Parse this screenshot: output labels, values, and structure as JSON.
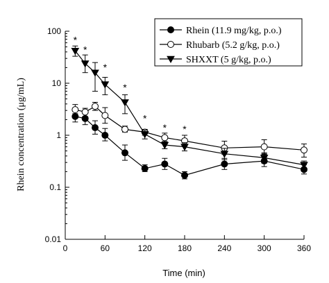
{
  "chart_data": {
    "type": "line",
    "title": "",
    "xlabel": "Time (min)",
    "ylabel": "Rhein concentration (μg/mL)",
    "x_scale": "linear",
    "y_scale": "log",
    "xlim": [
      0,
      360
    ],
    "ylim": [
      0.01,
      100
    ],
    "x_ticks": [
      0,
      60,
      120,
      180,
      240,
      300,
      360
    ],
    "x_tick_labels": [
      "0",
      "60",
      "120",
      "180",
      "240",
      "300",
      "360"
    ],
    "y_ticks": [
      0.01,
      0.1,
      1,
      10,
      100
    ],
    "y_tick_labels": [
      "0.01",
      "0.1",
      "1",
      "10",
      "100"
    ],
    "grid": false,
    "legend_position": "top-right",
    "series": [
      {
        "name": "Rhein (11.9 mg/kg, p.o.)",
        "marker": "filled-circle",
        "x": [
          15,
          30,
          45,
          60,
          90,
          120,
          150,
          180,
          240,
          300,
          360
        ],
        "y": [
          2.3,
          2.1,
          1.4,
          1.0,
          0.46,
          0.23,
          0.28,
          0.17,
          0.28,
          0.32,
          0.22
        ],
        "err_up": [
          2.9,
          2.7,
          1.9,
          1.35,
          0.65,
          0.27,
          0.36,
          0.2,
          0.36,
          0.43,
          0.27
        ],
        "err_down": [
          1.8,
          1.6,
          1.05,
          0.78,
          0.33,
          0.2,
          0.22,
          0.145,
          0.22,
          0.25,
          0.18
        ]
      },
      {
        "name": "Rhubarb (5.2 g/kg, p.o.)",
        "marker": "open-circle",
        "x": [
          15,
          30,
          45,
          60,
          90,
          120,
          150,
          180,
          240,
          300,
          360
        ],
        "y": [
          3.1,
          2.8,
          3.6,
          2.4,
          1.3,
          1.15,
          0.9,
          0.78,
          0.57,
          0.6,
          0.52
        ],
        "err_up": [
          3.9,
          3.3,
          4.3,
          3.4,
          1.5,
          1.3,
          1.1,
          1.0,
          0.77,
          0.82,
          0.68
        ],
        "err_down": [
          2.6,
          2.3,
          3.0,
          1.7,
          1.15,
          1.0,
          0.75,
          0.63,
          0.43,
          0.44,
          0.38
        ]
      },
      {
        "name": "SHXXT (5 g/kg, p.o.)",
        "marker": "filled-triangle-down",
        "x": [
          15,
          30,
          45,
          60,
          90,
          120,
          150,
          180,
          240,
          300,
          360
        ],
        "y": [
          42,
          24,
          16,
          9.5,
          4.3,
          1.05,
          0.65,
          0.6,
          0.44,
          0.37,
          0.27
        ],
        "err_up": [
          52,
          35,
          25,
          13,
          6.0,
          1.25,
          0.76,
          0.72,
          0.56,
          0.46,
          0.32
        ],
        "err_down": [
          33,
          16,
          7.0,
          6.0,
          2.6,
          0.85,
          0.55,
          0.5,
          0.34,
          0.29,
          0.23
        ]
      }
    ],
    "annotations": [
      {
        "text": "*",
        "x": 15,
        "y": 70
      },
      {
        "text": "*",
        "x": 30,
        "y": 46
      },
      {
        "text": "*",
        "x": 60,
        "y": 21
      },
      {
        "text": "*",
        "x": 90,
        "y": 8.6
      },
      {
        "text": "*",
        "x": 120,
        "y": 2.2
      },
      {
        "text": "*",
        "x": 150,
        "y": 1.45
      },
      {
        "text": "*",
        "x": 180,
        "y": 1.35
      }
    ]
  }
}
